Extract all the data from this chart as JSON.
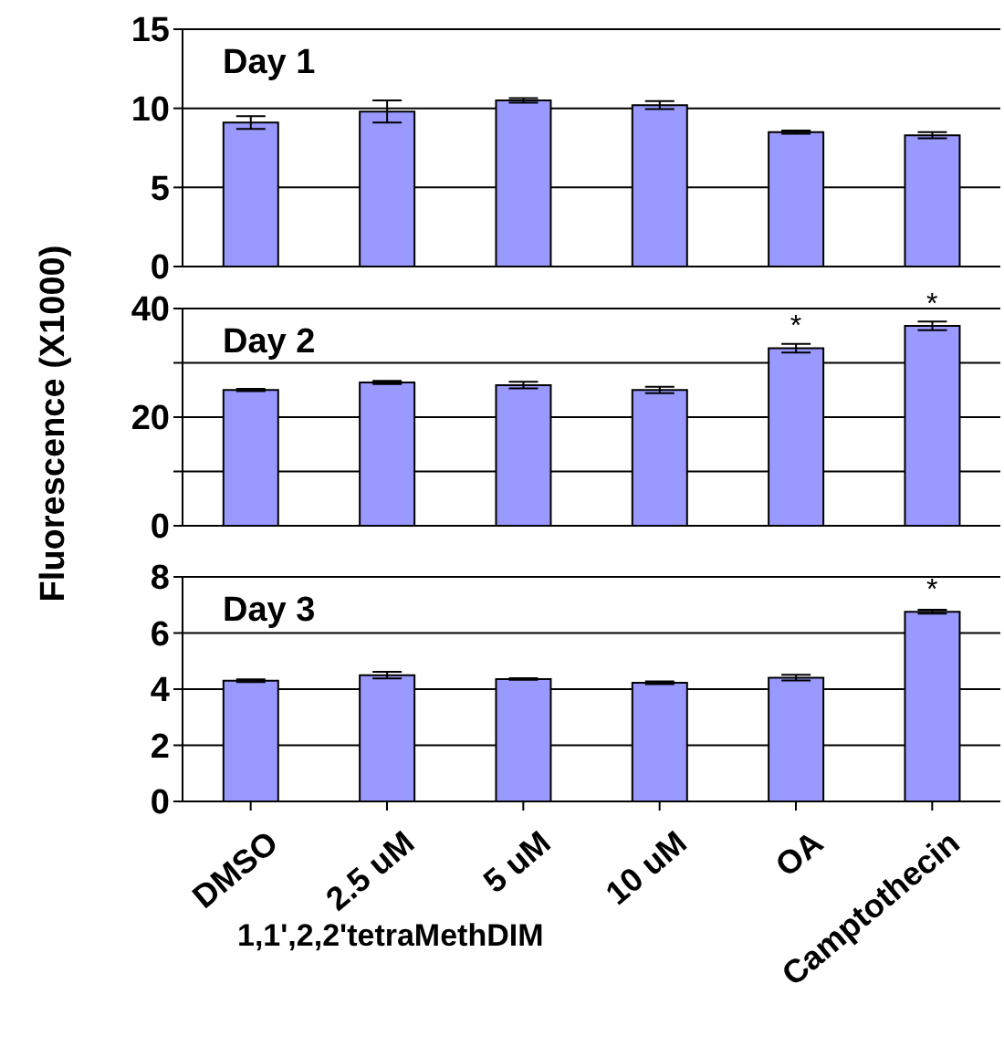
{
  "chart_data": [
    {
      "type": "bar",
      "categories": [
        "DMSO",
        "2.5 uM",
        "5 uM",
        "10 uM",
        "OA",
        "Camptothecin"
      ],
      "values": [
        9.1,
        9.8,
        10.5,
        10.2,
        8.5,
        8.3
      ],
      "errors": [
        0.4,
        0.7,
        0.15,
        0.25,
        0.1,
        0.2
      ],
      "color": "#9999ff",
      "ylim": [
        0,
        15
      ],
      "yticks": [
        0,
        5,
        10,
        15
      ],
      "grid": "y",
      "tick_labels": "y",
      "annotations": [
        "Day 1"
      ]
    },
    {
      "type": "bar",
      "categories": [
        "DMSO",
        "2.5 uM",
        "5 uM",
        "10 uM",
        "OA",
        "Camptothecin"
      ],
      "values": [
        25.0,
        26.4,
        25.9,
        25.0,
        32.7,
        36.8
      ],
      "errors": [
        0.2,
        0.3,
        0.6,
        0.6,
        0.8,
        0.8
      ],
      "color": "#9999ff",
      "ylim": [
        0,
        40
      ],
      "yticks": [
        0,
        {
          "value": 10,
          "label": null
        },
        20,
        {
          "value": 30,
          "label": null
        },
        40
      ],
      "grid": "y",
      "tick_labels": "y",
      "ylabel": "Fluorescence (X1000)",
      "annotations": [
        "Day 2",
        {
          "text": "*",
          "x": "OA",
          "y": 32.7
        },
        {
          "text": "*",
          "x": "Camptothecin",
          "y": 36.8
        }
      ]
    },
    {
      "type": "bar",
      "categories": [
        "DMSO",
        "2.5 uM",
        "5 uM",
        "10 uM",
        "OA",
        "Camptothecin"
      ],
      "values": [
        4.3,
        4.5,
        4.36,
        4.23,
        4.41,
        6.76
      ],
      "errors": [
        0.05,
        0.12,
        0.03,
        0.05,
        0.1,
        0.07
      ],
      "color": "#9999ff",
      "ylim": [
        0,
        8
      ],
      "yticks": [
        0,
        2,
        4,
        6,
        8
      ],
      "grid": "y",
      "xlabel": "1,1',2,2'tetraMethDIM",
      "annotations": [
        "Day 3",
        {
          "text": "*",
          "x": "Camptothecin",
          "y": 6.76
        }
      ]
    }
  ]
}
